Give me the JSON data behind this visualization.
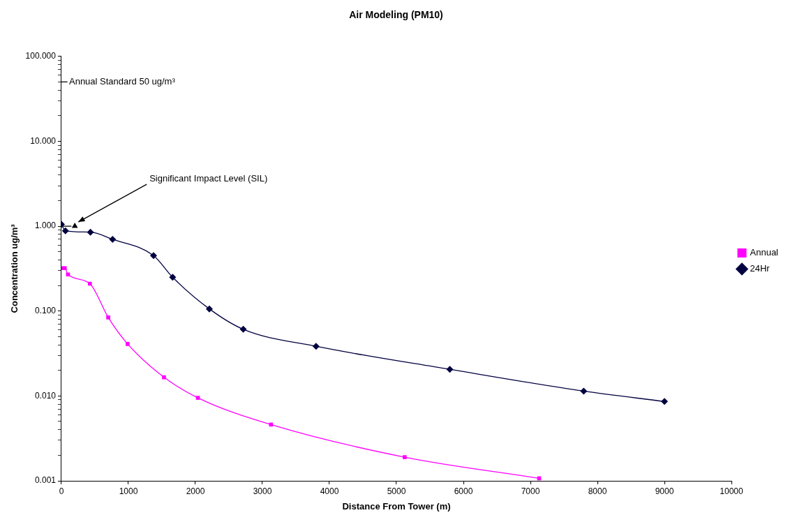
{
  "chart_data": {
    "type": "line",
    "title": "Air Modeling (PM10)",
    "xlabel": "Distance From Tower (m)",
    "ylabel": "Concentration ug/m³",
    "log": "y",
    "xlim": [
      0,
      10000
    ],
    "xticks": [
      0,
      1000,
      2000,
      3000,
      4000,
      5000,
      6000,
      7000,
      8000,
      9000,
      10000
    ],
    "ylim": [
      0.001,
      100
    ],
    "yticks": [
      {
        "value": 0.001,
        "label": "0.001"
      },
      {
        "value": 0.002,
        "label": null
      },
      {
        "value": 0.003,
        "label": null
      },
      {
        "value": 0.004,
        "label": null
      },
      {
        "value": 0.005,
        "label": null
      },
      {
        "value": 0.006,
        "label": null
      },
      {
        "value": 0.007,
        "label": null
      },
      {
        "value": 0.008,
        "label": null
      },
      {
        "value": 0.009,
        "label": null
      },
      {
        "value": 0.01,
        "label": "0.010"
      },
      {
        "value": 0.02,
        "label": null
      },
      {
        "value": 0.03,
        "label": null
      },
      {
        "value": 0.04,
        "label": null
      },
      {
        "value": 0.05,
        "label": null
      },
      {
        "value": 0.06,
        "label": null
      },
      {
        "value": 0.07,
        "label": null
      },
      {
        "value": 0.08,
        "label": null
      },
      {
        "value": 0.09,
        "label": null
      },
      {
        "value": 0.1,
        "label": "0.100"
      },
      {
        "value": 0.2,
        "label": null
      },
      {
        "value": 0.3,
        "label": null
      },
      {
        "value": 0.4,
        "label": null
      },
      {
        "value": 0.5,
        "label": null
      },
      {
        "value": 0.6,
        "label": null
      },
      {
        "value": 0.7,
        "label": null
      },
      {
        "value": 0.8,
        "label": null
      },
      {
        "value": 0.9,
        "label": null
      },
      {
        "value": 1,
        "label": "1.000"
      },
      {
        "value": 2,
        "label": null
      },
      {
        "value": 3,
        "label": null
      },
      {
        "value": 4,
        "label": null
      },
      {
        "value": 5,
        "label": null
      },
      {
        "value": 6,
        "label": null
      },
      {
        "value": 7,
        "label": null
      },
      {
        "value": 8,
        "label": null
      },
      {
        "value": 9,
        "label": null
      },
      {
        "value": 10,
        "label": "10.000"
      },
      {
        "value": 20,
        "label": null
      },
      {
        "value": 30,
        "label": null
      },
      {
        "value": 40,
        "label": null
      },
      {
        "value": 50,
        "label": null
      },
      {
        "value": 60,
        "label": null
      },
      {
        "value": 70,
        "label": null
      },
      {
        "value": 80,
        "label": null
      },
      {
        "value": 90,
        "label": null
      },
      {
        "value": 100,
        "label": "100.000"
      }
    ],
    "legend": "right",
    "series": [
      {
        "name": "Annual",
        "color": "#ff00ff",
        "marker": "square",
        "x": [
          0,
          50,
          98,
          425,
          699,
          988,
          1531,
          2037,
          3128,
          5123,
          7130
        ],
        "values": [
          0.32,
          0.32,
          0.27,
          0.21,
          0.084,
          0.041,
          0.0166,
          0.0095,
          0.0046,
          0.0019,
          0.00107
        ]
      },
      {
        "name": "24Hr",
        "color": "#000040",
        "marker": "diamond",
        "x": [
          0,
          60,
          433,
          764,
          1375,
          1660,
          2208,
          2714,
          3800,
          5796,
          7795,
          9000
        ],
        "values": [
          1.05,
          0.88,
          0.85,
          0.7,
          0.45,
          0.25,
          0.106,
          0.061,
          0.0385,
          0.0206,
          0.0114,
          0.0086
        ]
      },
      {
        "type": "line",
        "color": "#000000",
        "marker": "none",
        "x": [
          0,
          90
        ],
        "values": [
          50,
          50
        ]
      },
      {
        "type": "line",
        "color": "#000000",
        "marker": "none",
        "x": [
          0,
          150
        ],
        "values": [
          1,
          1
        ]
      },
      {
        "type": "scatter",
        "color": "#000000",
        "marker": "triangle",
        "x": [
          200
        ],
        "values": [
          1
        ]
      }
    ],
    "annotations": [
      {
        "text": "Annual Standard 50 ug/m³",
        "x": 0,
        "y": 50
      },
      {
        "text": "Significant Impact Level (SIL)",
        "x": 200,
        "y": 1
      }
    ]
  }
}
